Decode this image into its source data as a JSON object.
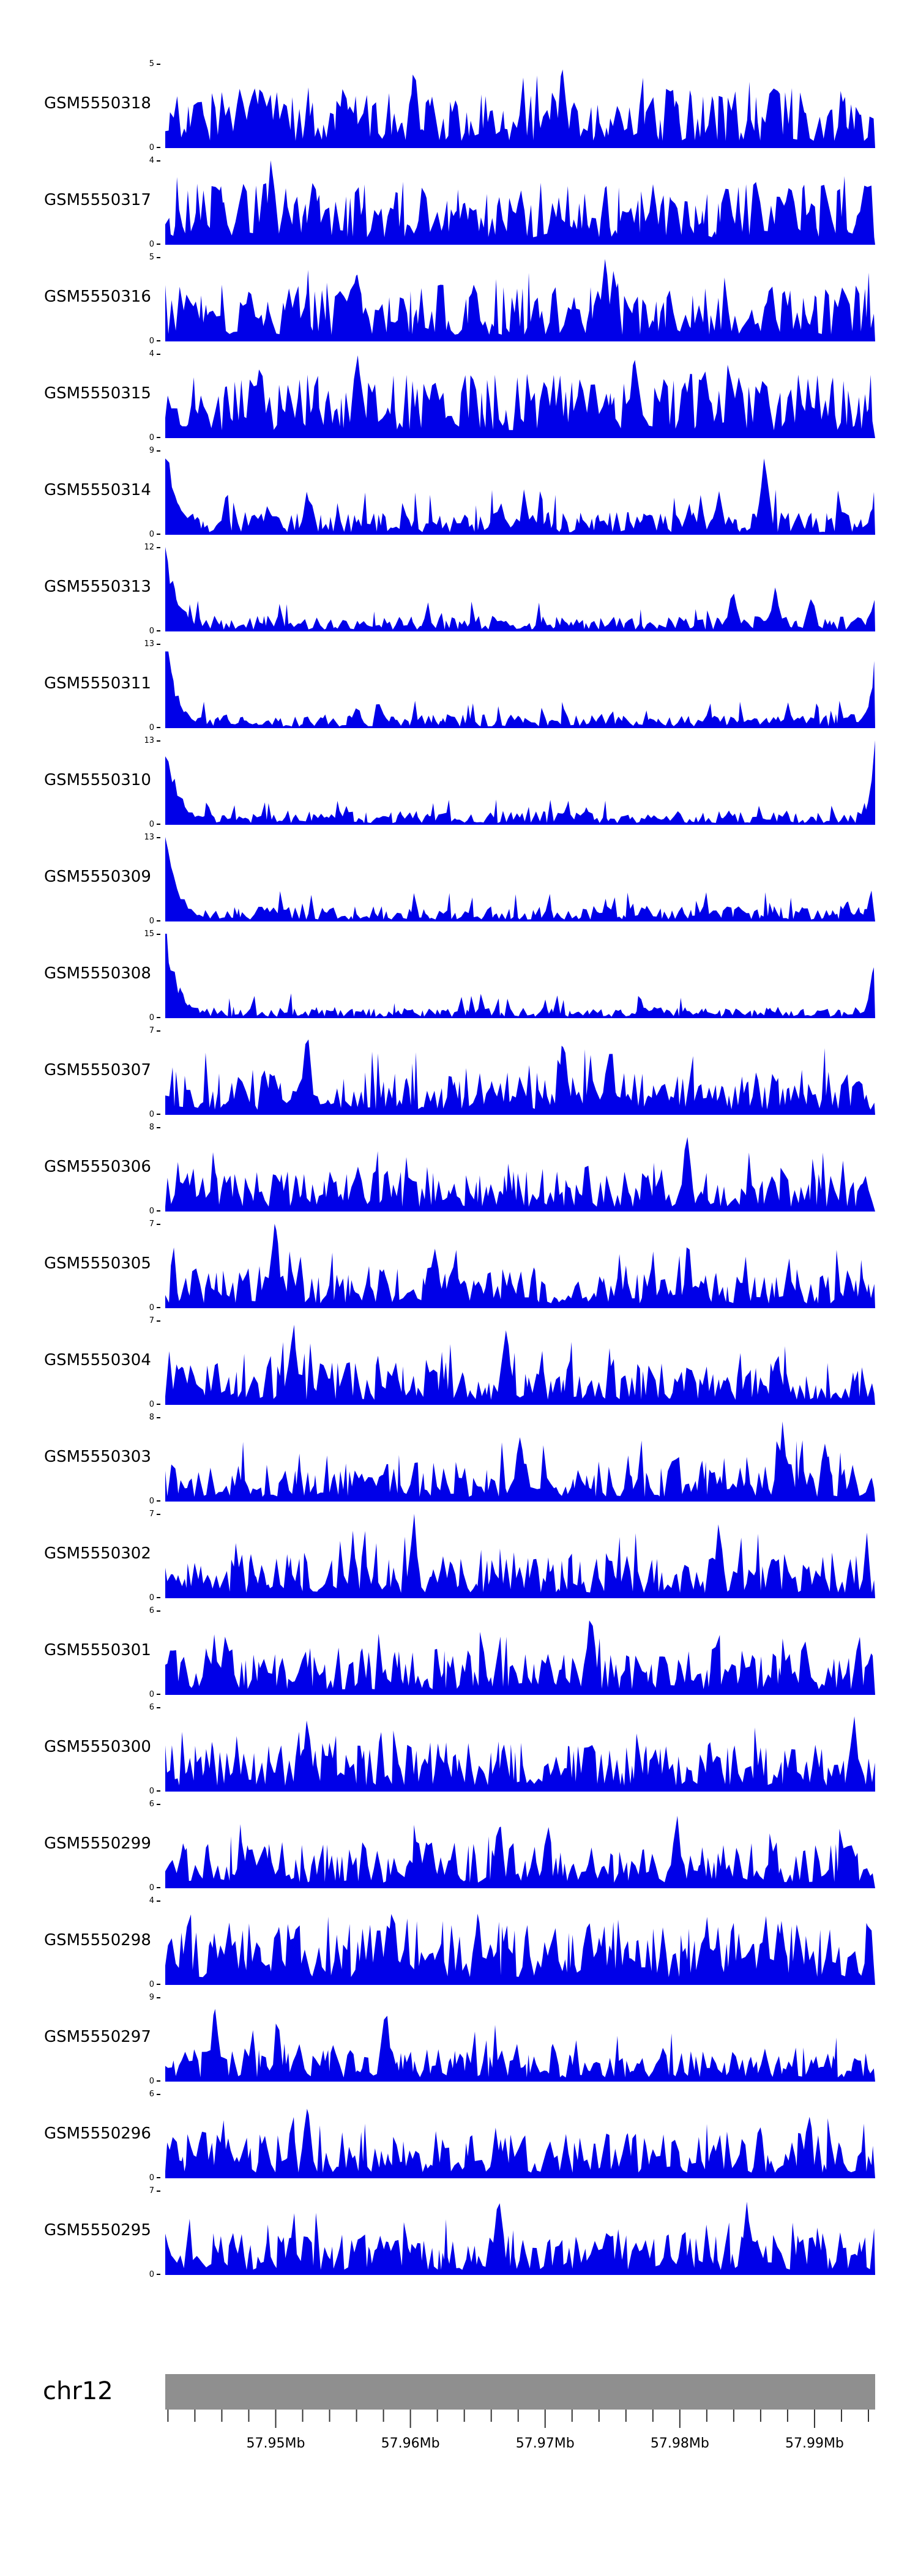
{
  "figure": {
    "background": "#ffffff",
    "tick_color": "#333333",
    "text_color": "#000000"
  },
  "chart_data": {
    "type": "area",
    "title": "",
    "description_note": "Stacked genomic coverage signal tracks over a chr12 region",
    "signal_color": "#0000e8",
    "chromosome": {
      "name": "chr12",
      "color": "#8f8f8f"
    },
    "x_axis": {
      "unit": "Mb",
      "start": 57.9418,
      "end": 57.9945,
      "minor_tick_step_mb": 0.002,
      "labels": [
        {
          "value": 57.95,
          "text": "57.95Mb"
        },
        {
          "value": 57.96,
          "text": "57.96Mb"
        },
        {
          "value": 57.97,
          "text": "57.97Mb"
        },
        {
          "value": 57.98,
          "text": "57.98Mb"
        },
        {
          "value": 57.99,
          "text": "57.99Mb"
        }
      ]
    },
    "tracks": [
      {
        "label": "GSM5550318",
        "ymax": 5,
        "ymin": 0,
        "seed": 318,
        "base": 0.42,
        "spike_prob": 0.05,
        "spike_amp": 0.45,
        "left_spike": 0,
        "right_spike": 0,
        "peaks": [
          {
            "pos": 0.35,
            "h": 1.0
          },
          {
            "pos": 0.56,
            "h": 0.97
          }
        ]
      },
      {
        "label": "GSM5550317",
        "ymax": 4,
        "ymin": 0,
        "seed": 317,
        "base": 0.44,
        "spike_prob": 0.05,
        "spike_amp": 0.45,
        "left_spike": 0,
        "right_spike": 0,
        "peaks": [
          {
            "pos": 0.15,
            "h": 1.0
          },
          {
            "pos": 0.88,
            "h": 0.9
          }
        ]
      },
      {
        "label": "GSM5550316",
        "ymax": 5,
        "ymin": 0,
        "seed": 316,
        "base": 0.4,
        "spike_prob": 0.05,
        "spike_amp": 0.45,
        "left_spike": 0,
        "right_spike": 0,
        "peaks": [
          {
            "pos": 0.27,
            "h": 0.9
          },
          {
            "pos": 0.62,
            "h": 0.95
          }
        ]
      },
      {
        "label": "GSM5550315",
        "ymax": 4,
        "ymin": 0,
        "seed": 315,
        "base": 0.45,
        "spike_prob": 0.05,
        "spike_amp": 0.42,
        "left_spike": 0,
        "right_spike": 0,
        "peaks": [
          {
            "pos": 0.27,
            "h": 1.0
          },
          {
            "pos": 0.66,
            "h": 0.95
          }
        ]
      },
      {
        "label": "GSM5550314",
        "ymax": 9,
        "ymin": 0,
        "seed": 314,
        "base": 0.16,
        "spike_prob": 0.09,
        "spike_amp": 0.38,
        "left_spike": 1.0,
        "right_spike": 0.55,
        "peaks": [
          {
            "pos": 0.2,
            "h": 0.5
          },
          {
            "pos": 0.78,
            "h": 0.55
          },
          {
            "pos": 0.845,
            "h": 0.97
          }
        ]
      },
      {
        "label": "GSM5550313",
        "ymax": 12,
        "ymin": 0,
        "seed": 313,
        "base": 0.11,
        "spike_prob": 0.07,
        "spike_amp": 0.26,
        "left_spike": 1.0,
        "right_spike": 0.45,
        "peaks": [
          {
            "pos": 0.8,
            "h": 0.55
          },
          {
            "pos": 0.86,
            "h": 0.5
          },
          {
            "pos": 0.91,
            "h": 0.45
          }
        ]
      },
      {
        "label": "GSM5550311",
        "ymax": 13,
        "ymin": 0,
        "seed": 311,
        "base": 0.1,
        "spike_prob": 0.07,
        "spike_amp": 0.24,
        "left_spike": 1.0,
        "right_spike": 1.0,
        "peaks": []
      },
      {
        "label": "GSM5550310",
        "ymax": 13,
        "ymin": 0,
        "seed": 310,
        "base": 0.1,
        "spike_prob": 0.07,
        "spike_amp": 0.24,
        "left_spike": 1.0,
        "right_spike": 1.0,
        "peaks": []
      },
      {
        "label": "GSM5550309",
        "ymax": 13,
        "ymin": 0,
        "seed": 309,
        "base": 0.11,
        "spike_prob": 0.07,
        "spike_amp": 0.25,
        "left_spike": 1.0,
        "right_spike": 0.9,
        "peaks": []
      },
      {
        "label": "GSM5550308",
        "ymax": 15,
        "ymin": 0,
        "seed": 308,
        "base": 0.08,
        "spike_prob": 0.06,
        "spike_amp": 0.22,
        "left_spike": 1.0,
        "right_spike": 0.85,
        "peaks": []
      },
      {
        "label": "GSM5550307",
        "ymax": 7,
        "ymin": 0,
        "seed": 307,
        "base": 0.3,
        "spike_prob": 0.08,
        "spike_amp": 0.5,
        "left_spike": 0,
        "right_spike": 0,
        "peaks": [
          {
            "pos": 0.2,
            "h": 1.0
          },
          {
            "pos": 0.56,
            "h": 0.95
          }
        ]
      },
      {
        "label": "GSM5550306",
        "ymax": 8,
        "ymin": 0,
        "seed": 306,
        "base": 0.28,
        "spike_prob": 0.07,
        "spike_amp": 0.45,
        "left_spike": 0,
        "right_spike": 0,
        "peaks": [
          {
            "pos": 0.735,
            "h": 1.0
          }
        ]
      },
      {
        "label": "GSM5550305",
        "ymax": 7,
        "ymin": 0,
        "seed": 305,
        "base": 0.28,
        "spike_prob": 0.07,
        "spike_amp": 0.45,
        "left_spike": 0,
        "right_spike": 0,
        "peaks": [
          {
            "pos": 0.155,
            "h": 1.0
          },
          {
            "pos": 0.38,
            "h": 0.7
          }
        ]
      },
      {
        "label": "GSM5550304",
        "ymax": 7,
        "ymin": 0,
        "seed": 304,
        "base": 0.3,
        "spike_prob": 0.08,
        "spike_amp": 0.48,
        "left_spike": 0,
        "right_spike": 0,
        "peaks": [
          {
            "pos": 0.18,
            "h": 0.95
          },
          {
            "pos": 0.48,
            "h": 0.9
          }
        ]
      },
      {
        "label": "GSM5550303",
        "ymax": 8,
        "ymin": 0,
        "seed": 303,
        "base": 0.28,
        "spike_prob": 0.07,
        "spike_amp": 0.45,
        "left_spike": 0,
        "right_spike": 0,
        "peaks": [
          {
            "pos": 0.5,
            "h": 0.9
          },
          {
            "pos": 0.87,
            "h": 0.9
          },
          {
            "pos": 0.93,
            "h": 0.8
          }
        ]
      },
      {
        "label": "GSM5550302",
        "ymax": 7,
        "ymin": 0,
        "seed": 302,
        "base": 0.32,
        "spike_prob": 0.07,
        "spike_amp": 0.48,
        "left_spike": 0,
        "right_spike": 0,
        "peaks": [
          {
            "pos": 0.35,
            "h": 0.95
          },
          {
            "pos": 0.78,
            "h": 0.95
          }
        ]
      },
      {
        "label": "GSM5550301",
        "ymax": 6,
        "ymin": 0,
        "seed": 301,
        "base": 0.33,
        "spike_prob": 0.06,
        "spike_amp": 0.45,
        "left_spike": 0,
        "right_spike": 0,
        "peaks": [
          {
            "pos": 0.6,
            "h": 1.0
          }
        ]
      },
      {
        "label": "GSM5550300",
        "ymax": 6,
        "ymin": 0,
        "seed": 300,
        "base": 0.35,
        "spike_prob": 0.06,
        "spike_amp": 0.45,
        "left_spike": 0,
        "right_spike": 0,
        "peaks": [
          {
            "pos": 0.2,
            "h": 0.85
          },
          {
            "pos": 0.97,
            "h": 0.9
          }
        ]
      },
      {
        "label": "GSM5550299",
        "ymax": 6,
        "ymin": 0,
        "seed": 299,
        "base": 0.33,
        "spike_prob": 0.06,
        "spike_amp": 0.45,
        "left_spike": 0,
        "right_spike": 0,
        "peaks": [
          {
            "pos": 0.47,
            "h": 0.85
          },
          {
            "pos": 0.72,
            "h": 0.85
          }
        ]
      },
      {
        "label": "GSM5550298",
        "ymax": 4,
        "ymin": 0,
        "seed": 298,
        "base": 0.45,
        "spike_prob": 0.05,
        "spike_amp": 0.4,
        "left_spike": 0,
        "right_spike": 0,
        "peaks": [
          {
            "pos": 0.32,
            "h": 1.0
          }
        ]
      },
      {
        "label": "GSM5550297",
        "ymax": 9,
        "ymin": 0,
        "seed": 297,
        "base": 0.24,
        "spike_prob": 0.07,
        "spike_amp": 0.45,
        "left_spike": 0,
        "right_spike": 0,
        "peaks": [
          {
            "pos": 0.07,
            "h": 0.9
          },
          {
            "pos": 0.31,
            "h": 1.0
          }
        ]
      },
      {
        "label": "GSM5550296",
        "ymax": 6,
        "ymin": 0,
        "seed": 296,
        "base": 0.33,
        "spike_prob": 0.06,
        "spike_amp": 0.42,
        "left_spike": 0,
        "right_spike": 0,
        "peaks": [
          {
            "pos": 0.2,
            "h": 0.9
          }
        ]
      },
      {
        "label": "GSM5550295",
        "ymax": 7,
        "ymin": 0,
        "seed": 295,
        "base": 0.3,
        "spike_prob": 0.07,
        "spike_amp": 0.45,
        "left_spike": 0,
        "right_spike": 0,
        "peaks": [
          {
            "pos": 0.47,
            "h": 1.0
          },
          {
            "pos": 0.82,
            "h": 0.85
          }
        ]
      }
    ]
  }
}
